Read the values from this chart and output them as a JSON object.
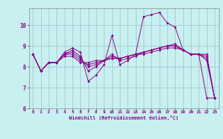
{
  "title": "",
  "xlabel": "Windchill (Refroidissement éolien,°C)",
  "bg_color": "#c8f0f0",
  "grid_color": "#a0c8d0",
  "line_color": "#880088",
  "xlim": [
    -0.5,
    23.5
  ],
  "ylim": [
    6.0,
    10.8
  ],
  "yticks": [
    6,
    7,
    8,
    9,
    10
  ],
  "xticks": [
    0,
    1,
    2,
    3,
    4,
    5,
    6,
    7,
    8,
    9,
    10,
    11,
    12,
    13,
    14,
    15,
    16,
    17,
    18,
    19,
    20,
    21,
    22,
    23
  ],
  "series": [
    [
      8.6,
      7.8,
      8.2,
      8.2,
      8.7,
      8.9,
      8.7,
      7.3,
      7.6,
      8.1,
      9.5,
      8.1,
      8.3,
      8.6,
      10.4,
      10.5,
      10.6,
      10.1,
      9.9,
      8.8,
      8.6,
      8.6,
      6.5,
      6.5
    ],
    [
      8.6,
      7.8,
      8.2,
      8.2,
      8.6,
      8.8,
      8.5,
      7.8,
      8.0,
      8.3,
      8.6,
      8.3,
      8.4,
      8.5,
      8.7,
      8.8,
      8.9,
      9.0,
      9.1,
      8.8,
      8.6,
      8.6,
      8.6,
      6.5
    ],
    [
      8.6,
      7.8,
      8.2,
      8.2,
      8.6,
      8.7,
      8.4,
      8.0,
      8.1,
      8.3,
      8.5,
      8.4,
      8.5,
      8.6,
      8.7,
      8.8,
      8.9,
      9.0,
      9.0,
      8.8,
      8.6,
      8.6,
      8.5,
      6.5
    ],
    [
      8.6,
      7.8,
      8.2,
      8.2,
      8.6,
      8.6,
      8.3,
      8.1,
      8.2,
      8.3,
      8.4,
      8.4,
      8.5,
      8.6,
      8.7,
      8.8,
      8.9,
      9.0,
      9.0,
      8.8,
      8.6,
      8.6,
      8.4,
      6.5
    ],
    [
      8.6,
      7.8,
      8.2,
      8.2,
      8.5,
      8.5,
      8.2,
      8.2,
      8.3,
      8.3,
      8.4,
      8.4,
      8.5,
      8.6,
      8.6,
      8.7,
      8.8,
      8.9,
      8.9,
      8.8,
      8.6,
      8.6,
      8.3,
      6.5
    ]
  ]
}
